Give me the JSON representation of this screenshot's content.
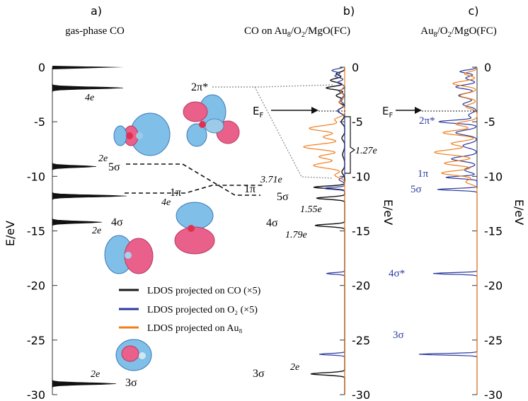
{
  "panels": {
    "a": {
      "letter": "a)",
      "title": "gas-phase CO"
    },
    "b": {
      "letter": "b)",
      "title_main": "CO on Au",
      "title_sub1": "8",
      "title_mid": "/O",
      "title_sub2": "2",
      "title_tail": "/MgO(FC)"
    },
    "c": {
      "letter": "c)",
      "title_main": "Au",
      "title_sub1": "8",
      "title_mid": "/O",
      "title_sub2": "2",
      "title_tail": "/MgO(FC)"
    }
  },
  "axes": {
    "left_label": "E/eV",
    "b_label": "E/eV",
    "c_label": "E/eV",
    "ticks": [
      0,
      -5,
      -10,
      -15,
      -20,
      -25,
      -30
    ],
    "tick_labels": [
      "0",
      "-5",
      "-10",
      "-15",
      "-20",
      "-25",
      "-30"
    ],
    "ylim": [
      -30,
      0
    ]
  },
  "legend": [
    {
      "text": "LDOS projected on CO  (×5)",
      "color": "#1a1a1a"
    },
    {
      "text": "LDOS projected on O₂  (×5)",
      "color": "#2b3a9e"
    },
    {
      "text": "LDOS projected on Au₈",
      "color": "#f07d1e"
    }
  ],
  "annotations": {
    "a_4e_top": "4e",
    "a_2pi": "2π*",
    "a_2e_5s": "2e",
    "a_5s": "5σ",
    "a_4e_1pi": "4e",
    "a_1pi": "1π",
    "a_2e_4s": "2e",
    "a_4s": "4σ",
    "a_2e_3s": "2e",
    "a_3s": "3σ",
    "b_ef": "E",
    "b_ef_sub": "F",
    "b_127": "1.27e",
    "b_371": "3.71e",
    "b_1pi": "1π",
    "b_5s": "5σ",
    "b_155": "1.55e",
    "b_4s": "4σ",
    "b_179": "1.79e",
    "b_3s": "3σ",
    "b_2e": "2e",
    "c_ef": "E",
    "c_ef_sub": "F",
    "c_2pi": "2π*",
    "c_1pi": "1π",
    "c_5s": "5σ",
    "c_4s": "4σ*",
    "c_3s": "3σ"
  },
  "colors": {
    "co": "#1a1a1a",
    "o2": "#2b3a9e",
    "au8": "#f07d1e",
    "orbital_blue": "#7fbfe8",
    "orbital_pink": "#e9608a"
  },
  "chart_data": {
    "type": "line",
    "title": "",
    "ylabel": "E/eV",
    "ylim": [
      -30,
      0
    ],
    "panels": [
      {
        "panel": "a",
        "name": "gas-phase CO",
        "levels": [
          {
            "label": "2π*",
            "energy": -1.9,
            "occupancy": "4e"
          },
          {
            "label": "5σ",
            "energy": -9.1,
            "occupancy": "2e"
          },
          {
            "label": "1π",
            "energy": -11.8,
            "occupancy": "4e"
          },
          {
            "label": "4σ",
            "energy": -14.2,
            "occupancy": "2e"
          },
          {
            "label": "3σ",
            "energy": -29.0,
            "occupancy": "2e"
          }
        ]
      },
      {
        "panel": "b",
        "name": "CO on Au8/O2/MgO(FC)",
        "levels": [
          {
            "label": "EF",
            "energy": -4.4
          },
          {
            "label": "1π",
            "energy": -11.0,
            "charge": "3.71e"
          },
          {
            "label": "5σ",
            "energy": -12.0,
            "charge": "1.55e"
          },
          {
            "label": "4σ",
            "energy": -14.5,
            "charge": "1.79e"
          },
          {
            "label": "3σ",
            "energy": -28.1,
            "occupancy": "2e"
          }
        ],
        "bracket": {
          "from": -4.8,
          "to": -10.2,
          "label": "1.27e"
        }
      },
      {
        "panel": "c",
        "name": "Au8/O2/MgO(FC)",
        "levels": [
          {
            "label": "EF",
            "energy": -4.4
          },
          {
            "label": "2π*",
            "energy": -5.0
          },
          {
            "label": "1π",
            "energy": -10.1
          },
          {
            "label": "5σ",
            "energy": -11.2
          },
          {
            "label": "4σ*",
            "energy": -18.9
          },
          {
            "label": "3σ",
            "energy": -26.3
          }
        ]
      }
    ]
  }
}
